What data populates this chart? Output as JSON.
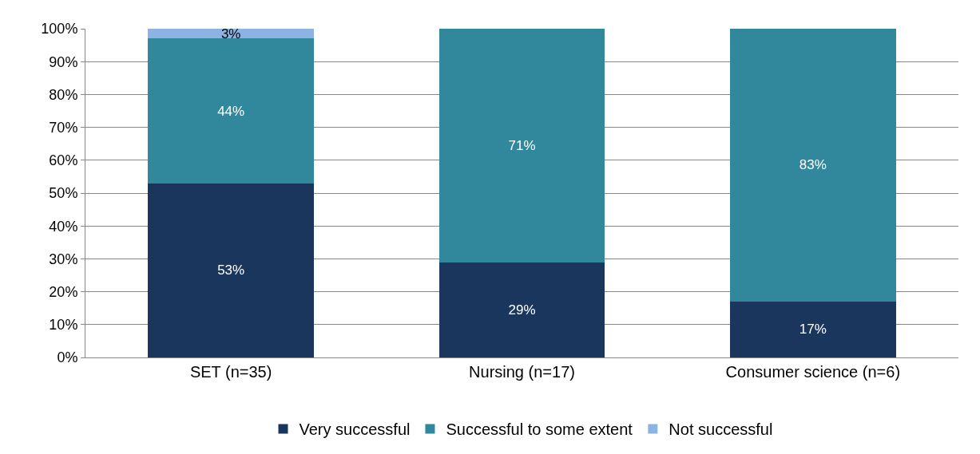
{
  "chart_data": {
    "type": "bar",
    "stacked": true,
    "categories": [
      "SET (n=35)",
      "Nursing (n=17)",
      "Consumer science (n=6)"
    ],
    "series": [
      {
        "name": "Very successful",
        "color": "#1b365d",
        "values": [
          53,
          29,
          17
        ],
        "value_labels": [
          "53%",
          "29%",
          "17%"
        ]
      },
      {
        "name": "Successful to some extent",
        "color": "#31879b",
        "values": [
          44,
          71,
          83
        ],
        "value_labels": [
          "44%",
          "71%",
          "83%"
        ]
      },
      {
        "name": "Not successful",
        "color": "#8db3e2",
        "values": [
          3,
          0,
          0
        ],
        "value_labels": [
          "3%",
          null,
          null
        ]
      }
    ],
    "ylim": [
      0,
      100
    ],
    "yticks": [
      {
        "value": 0,
        "label": "0%"
      },
      {
        "value": 10,
        "label": "10%"
      },
      {
        "value": 20,
        "label": "20%"
      },
      {
        "value": 30,
        "label": "30%"
      },
      {
        "value": 40,
        "label": "40%"
      },
      {
        "value": 50,
        "label": "50%"
      },
      {
        "value": 60,
        "label": "60%"
      },
      {
        "value": 70,
        "label": "70%"
      },
      {
        "value": 80,
        "label": "80%"
      },
      {
        "value": 90,
        "label": "90%"
      },
      {
        "value": 100,
        "label": "100%"
      }
    ],
    "grid": "y",
    "legend": "bottom"
  }
}
